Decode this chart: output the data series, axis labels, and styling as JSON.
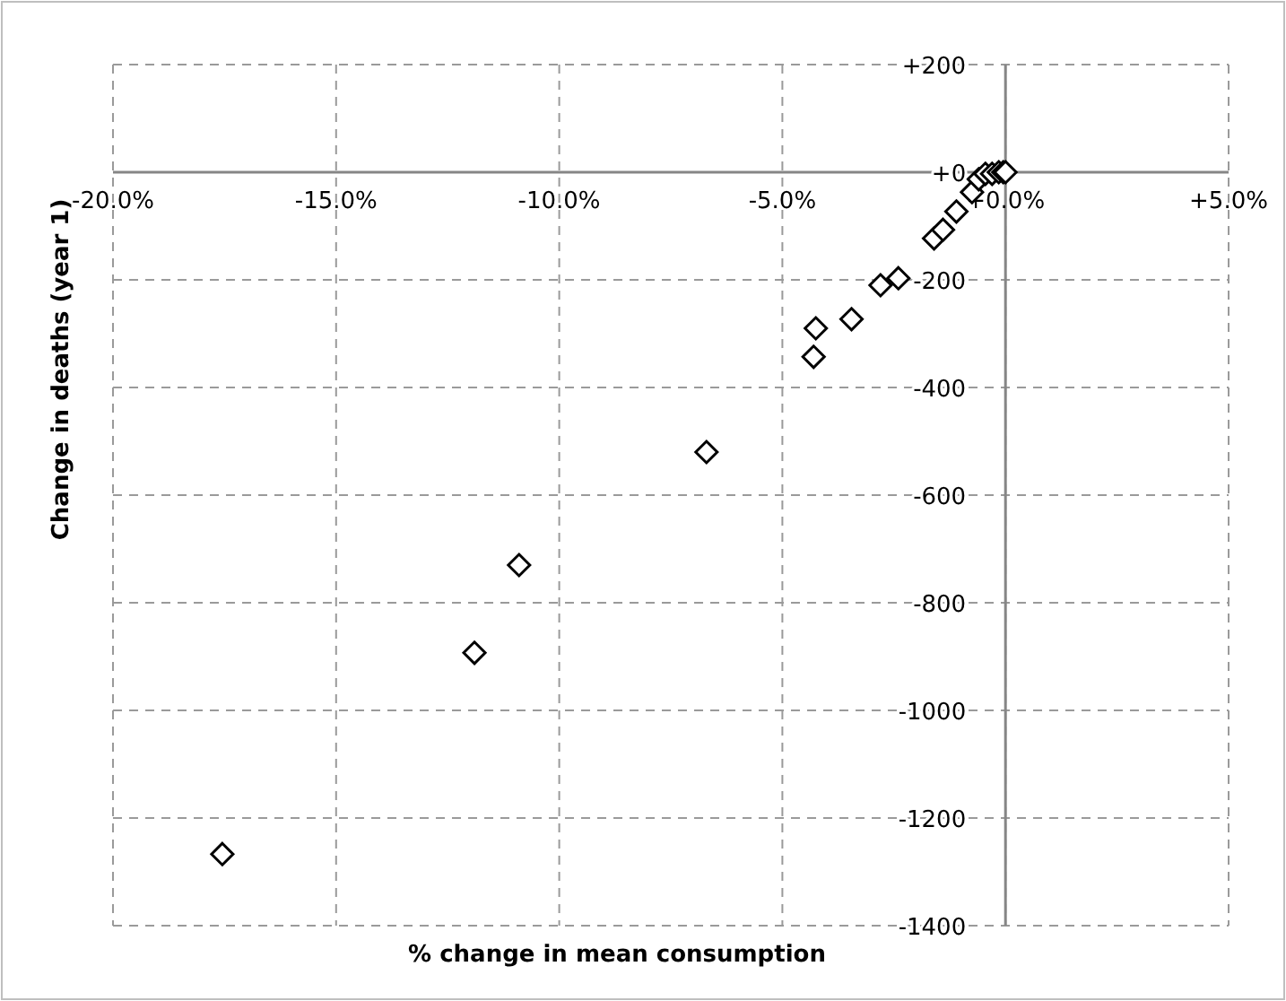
{
  "chart_data": {
    "type": "scatter",
    "xlabel": "% change in mean consumption",
    "ylabel": "Change in deaths (year 1)",
    "xlim": [
      -20,
      5
    ],
    "ylim": [
      -1400,
      200
    ],
    "xticks": [
      {
        "value": -20,
        "label": "-20.0%"
      },
      {
        "value": -15,
        "label": "-15.0%"
      },
      {
        "value": -10,
        "label": "-10.0%"
      },
      {
        "value": -5,
        "label": "-5.0%"
      },
      {
        "value": 0,
        "label": "+0.0%"
      },
      {
        "value": 5,
        "label": "+5.0%"
      }
    ],
    "yticks": [
      {
        "value": 200,
        "label": "+200"
      },
      {
        "value": 0,
        "label": "+0"
      },
      {
        "value": -200,
        "label": "-200"
      },
      {
        "value": -400,
        "label": "-400"
      },
      {
        "value": -600,
        "label": "-600"
      },
      {
        "value": -800,
        "label": "-800"
      },
      {
        "value": -1000,
        "label": "-1000"
      },
      {
        "value": -1200,
        "label": "-1200"
      },
      {
        "value": -1400,
        "label": "-1400"
      }
    ],
    "grid": true,
    "marker": "diamond",
    "series": [
      {
        "color": "#000000",
        "x": [
          -17.55,
          -11.9,
          -10.9,
          -6.7,
          -4.3,
          -4.25,
          -3.45,
          -2.8,
          -2.4,
          -1.6,
          -1.4,
          -1.1,
          -0.75,
          -0.6,
          -0.45,
          -0.3,
          -0.15,
          -0.05,
          0
        ],
        "values": [
          -1267,
          -893,
          -730,
          -520,
          -343,
          -290,
          -273,
          -210,
          -197,
          -123,
          -107,
          -73,
          -37,
          -13,
          -3,
          -3,
          0,
          0,
          0
        ]
      }
    ]
  }
}
